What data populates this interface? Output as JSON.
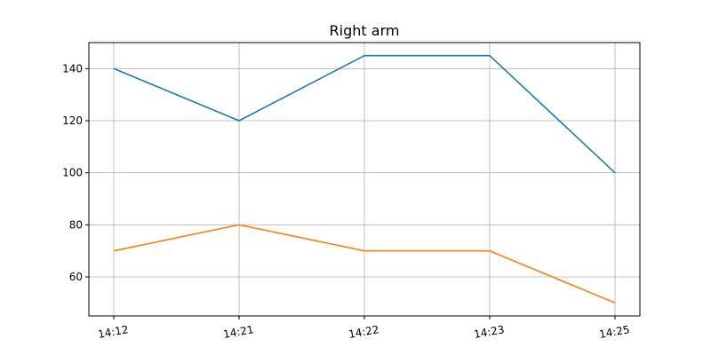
{
  "chart_data": {
    "type": "line",
    "title": "Right arm",
    "xlabel": "",
    "ylabel": "",
    "categories": [
      "14:12",
      "14:21",
      "14:22",
      "14:23",
      "14:25"
    ],
    "series": [
      {
        "values": [
          140,
          120,
          145,
          145,
          100
        ],
        "color": "#1f77b4"
      },
      {
        "values": [
          70,
          80,
          70,
          70,
          50
        ],
        "color": "#ff7f0e"
      }
    ],
    "yticks": [
      60,
      80,
      100,
      120,
      140
    ],
    "ylim": [
      45,
      150
    ],
    "grid": true,
    "legend": "none"
  }
}
